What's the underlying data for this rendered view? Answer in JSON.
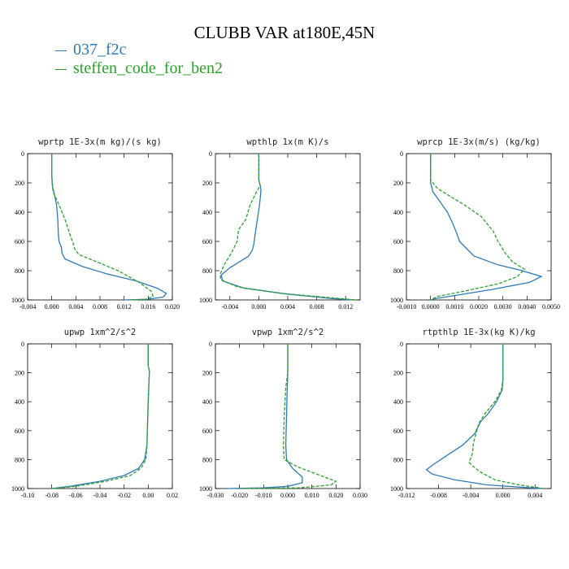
{
  "title": "CLUBB VAR at180E,45N",
  "legend": [
    {
      "name": "037_f2c",
      "color": "#2e7ab6"
    },
    {
      "name": "steffen_code_for_ben2",
      "color": "#2ca02c"
    }
  ],
  "chart_data": [
    {
      "type": "line",
      "title": "wprtp  1E-3x(m kg)/(s kg)",
      "xlim": [
        -0.004,
        0.02
      ],
      "ylim": [
        1000,
        0
      ],
      "xticks": [
        "-0.004",
        "0.000",
        "0.004",
        "0.008",
        "0.012",
        "0.016",
        "0.020"
      ],
      "xtick_values": [
        -0.004,
        0.0,
        0.004,
        0.008,
        0.012,
        0.016,
        0.02
      ],
      "yticks": [
        "0",
        "200",
        "400",
        "600",
        "800",
        "1000"
      ],
      "ytick_values": [
        0,
        200,
        400,
        600,
        800,
        1000
      ],
      "series": [
        {
          "name": "037_f2c",
          "points": [
            [
              0.0,
              0
            ],
            [
              0.0,
              150
            ],
            [
              0.0001,
              220
            ],
            [
              0.0004,
              270
            ],
            [
              0.0008,
              350
            ],
            [
              0.001,
              450
            ],
            [
              0.0011,
              550
            ],
            [
              0.0012,
              600
            ],
            [
              0.0016,
              640
            ],
            [
              0.0017,
              680
            ],
            [
              0.0022,
              720
            ],
            [
              0.005,
              770
            ],
            [
              0.009,
              820
            ],
            [
              0.014,
              870
            ],
            [
              0.0175,
              920
            ],
            [
              0.019,
              955
            ],
            [
              0.0185,
              980
            ],
            [
              0.016,
              995
            ],
            [
              0.012,
              1000
            ]
          ]
        },
        {
          "name": "steffen_code_for_ben2",
          "points": [
            [
              0.0,
              0
            ],
            [
              0.0,
              150
            ],
            [
              0.0002,
              260
            ],
            [
              0.0012,
              350
            ],
            [
              0.0022,
              450
            ],
            [
              0.003,
              550
            ],
            [
              0.0036,
              620
            ],
            [
              0.0038,
              650
            ],
            [
              0.0045,
              690
            ],
            [
              0.0075,
              740
            ],
            [
              0.011,
              800
            ],
            [
              0.0145,
              880
            ],
            [
              0.0165,
              940
            ],
            [
              0.0168,
              975
            ],
            [
              0.0158,
              995
            ],
            [
              0.013,
              1000
            ]
          ]
        }
      ]
    },
    {
      "type": "line",
      "title": "wpthlp  1x(m K)/s",
      "xlim": [
        -0.006,
        0.014
      ],
      "ylim": [
        1000,
        0
      ],
      "xticks": [
        "-0.004",
        "0.000",
        "0.004",
        "0.008",
        "0.012"
      ],
      "xtick_values": [
        -0.004,
        0.0,
        0.004,
        0.008,
        0.012
      ],
      "yticks": [
        "0",
        "200",
        "400",
        "600",
        "800",
        "1000"
      ],
      "ytick_values": [
        0,
        200,
        400,
        600,
        800,
        1000
      ],
      "series": [
        {
          "name": "037_f2c",
          "points": [
            [
              0.0,
              0
            ],
            [
              0.0,
              180
            ],
            [
              0.0002,
              220
            ],
            [
              0.0003,
              250
            ],
            [
              0.0001,
              350
            ],
            [
              -0.0002,
              450
            ],
            [
              -0.0005,
              550
            ],
            [
              -0.0007,
              620
            ],
            [
              -0.0009,
              660
            ],
            [
              -0.0014,
              700
            ],
            [
              -0.004,
              780
            ],
            [
              -0.0052,
              830
            ],
            [
              -0.005,
              870
            ],
            [
              -0.002,
              920
            ],
            [
              0.004,
              960
            ],
            [
              0.01,
              990
            ],
            [
              0.013,
              1000
            ]
          ]
        },
        {
          "name": "steffen_code_for_ben2",
          "points": [
            [
              0.0,
              0
            ],
            [
              0.0,
              180
            ],
            [
              0.0002,
              220
            ],
            [
              -0.0002,
              250
            ],
            [
              -0.0012,
              350
            ],
            [
              -0.0018,
              450
            ],
            [
              -0.0028,
              520
            ],
            [
              -0.003,
              600
            ],
            [
              -0.0038,
              680
            ],
            [
              -0.0048,
              760
            ],
            [
              -0.0053,
              820
            ],
            [
              -0.0053,
              860
            ],
            [
              -0.003,
              910
            ],
            [
              0.003,
              955
            ],
            [
              0.01,
              985
            ],
            [
              0.0135,
              1000
            ]
          ]
        }
      ]
    },
    {
      "type": "line",
      "title": "wprcp  1E-3x(m/s) (kg/kg)",
      "xlim": [
        -0.001,
        0.005
      ],
      "ylim": [
        1000,
        0
      ],
      "xticks": [
        "-0.0010",
        "0.0000",
        "0.0010",
        "0.0020",
        "0.0030",
        "0.0040",
        "0.0050"
      ],
      "xtick_values": [
        -0.001,
        0.0,
        0.001,
        0.002,
        0.003,
        0.004,
        0.005
      ],
      "yticks": [
        "0",
        "200",
        "400",
        "600",
        "800",
        "1000"
      ],
      "ytick_values": [
        0,
        200,
        400,
        600,
        800,
        1000
      ],
      "series": [
        {
          "name": "037_f2c",
          "points": [
            [
              0.0,
              0
            ],
            [
              0.0,
              200
            ],
            [
              0.0001,
              260
            ],
            [
              0.0004,
              330
            ],
            [
              0.0007,
              400
            ],
            [
              0.0009,
              470
            ],
            [
              0.0011,
              550
            ],
            [
              0.0012,
              600
            ],
            [
              0.0015,
              650
            ],
            [
              0.0018,
              700
            ],
            [
              0.0028,
              760
            ],
            [
              0.0038,
              800
            ],
            [
              0.0046,
              840
            ],
            [
              0.0041,
              880
            ],
            [
              0.0025,
              930
            ],
            [
              0.001,
              970
            ],
            [
              0.0002,
              990
            ],
            [
              0.0,
              1000
            ]
          ]
        },
        {
          "name": "steffen_code_for_ben2",
          "points": [
            [
              0.0,
              0
            ],
            [
              0.0,
              180
            ],
            [
              0.0003,
              240
            ],
            [
              0.0009,
              300
            ],
            [
              0.0014,
              350
            ],
            [
              0.0021,
              430
            ],
            [
              0.0026,
              530
            ],
            [
              0.0028,
              600
            ],
            [
              0.0031,
              680
            ],
            [
              0.0034,
              740
            ],
            [
              0.0039,
              790
            ],
            [
              0.0036,
              840
            ],
            [
              0.0028,
              890
            ],
            [
              0.0014,
              940
            ],
            [
              0.0003,
              975
            ],
            [
              0.0,
              1000
            ]
          ]
        }
      ]
    },
    {
      "type": "line",
      "title": "upwp  1xm^2/s^2",
      "xlim": [
        -0.1,
        0.02
      ],
      "ylim": [
        1000,
        0
      ],
      "xticks": [
        "-0.10",
        "-0.08",
        "-0.06",
        "-0.04",
        "-0.02",
        "0.00",
        "0.02"
      ],
      "xtick_values": [
        -0.1,
        -0.08,
        -0.06,
        -0.04,
        -0.02,
        0.0,
        0.02
      ],
      "yticks": [
        "0",
        "200",
        "400",
        "600",
        "800",
        "1000"
      ],
      "ytick_values": [
        0,
        200,
        400,
        600,
        800,
        1000
      ],
      "series": [
        {
          "name": "037_f2c",
          "points": [
            [
              0.0,
              0
            ],
            [
              0.0,
              150
            ],
            [
              0.001,
              190
            ],
            [
              0.0,
              400
            ],
            [
              -0.001,
              700
            ],
            [
              -0.003,
              800
            ],
            [
              -0.008,
              860
            ],
            [
              -0.02,
              910
            ],
            [
              -0.04,
              950
            ],
            [
              -0.065,
              985
            ],
            [
              -0.08,
              1000
            ]
          ]
        },
        {
          "name": "steffen_code_for_ben2",
          "points": [
            [
              0.0,
              0
            ],
            [
              0.0,
              150
            ],
            [
              0.001,
              190
            ],
            [
              0.0,
              400
            ],
            [
              -0.001,
              700
            ],
            [
              -0.002,
              800
            ],
            [
              -0.006,
              860
            ],
            [
              -0.015,
              910
            ],
            [
              -0.035,
              950
            ],
            [
              -0.06,
              985
            ],
            [
              -0.08,
              1000
            ]
          ]
        }
      ]
    },
    {
      "type": "line",
      "title": "vpwp  1xm^2/s^2",
      "xlim": [
        -0.03,
        0.03
      ],
      "ylim": [
        1000,
        0
      ],
      "xticks": [
        "-0.030",
        "-0.020",
        "-0.010",
        "0.000",
        "0.010",
        "0.020",
        "0.030"
      ],
      "xtick_values": [
        -0.03,
        -0.02,
        -0.01,
        0.0,
        0.01,
        0.02,
        0.03
      ],
      "yticks": [
        "0",
        "200",
        "400",
        "600",
        "800",
        "1000"
      ],
      "ytick_values": [
        0,
        200,
        400,
        600,
        800,
        1000
      ],
      "series": [
        {
          "name": "037_f2c",
          "points": [
            [
              0.0,
              0
            ],
            [
              0.0,
              100
            ],
            [
              0.0,
              200
            ],
            [
              -0.0002,
              300
            ],
            [
              -0.0005,
              500
            ],
            [
              -0.0008,
              700
            ],
            [
              -0.0005,
              800
            ],
            [
              0.002,
              860
            ],
            [
              0.006,
              920
            ],
            [
              0.006,
              960
            ],
            [
              0.0,
              985
            ],
            [
              -0.01,
              995
            ],
            [
              -0.025,
              1000
            ]
          ]
        },
        {
          "name": "steffen_code_for_ben2",
          "points": [
            [
              0.0,
              0
            ],
            [
              0.0,
              100
            ],
            [
              0.0,
              200
            ],
            [
              -0.0008,
              300
            ],
            [
              -0.0015,
              500
            ],
            [
              -0.0018,
              700
            ],
            [
              -0.0015,
              800
            ],
            [
              0.004,
              850
            ],
            [
              0.012,
              900
            ],
            [
              0.02,
              950
            ],
            [
              0.018,
              975
            ],
            [
              0.005,
              995
            ],
            [
              -0.02,
              1000
            ]
          ]
        }
      ]
    },
    {
      "type": "line",
      "title": "rtpthlp  1E-3x(kg K)/kg",
      "xlim": [
        -0.012,
        0.006
      ],
      "ylim": [
        1000,
        0
      ],
      "xticks": [
        "-0.012",
        "-0.008",
        "-0.004",
        "0.000",
        "0.004"
      ],
      "xtick_values": [
        -0.012,
        -0.008,
        -0.004,
        0.0,
        0.004
      ],
      "yticks": [
        "0",
        "200",
        "400",
        "600",
        "800",
        "1000"
      ],
      "ytick_values": [
        0,
        200,
        400,
        600,
        800,
        1000
      ],
      "series": [
        {
          "name": "037_f2c",
          "points": [
            [
              0.0,
              0
            ],
            [
              0.0,
              250
            ],
            [
              -0.0001,
              320
            ],
            [
              -0.0008,
              400
            ],
            [
              -0.0018,
              480
            ],
            [
              -0.0028,
              540
            ],
            [
              -0.0035,
              620
            ],
            [
              -0.005,
              700
            ],
            [
              -0.0072,
              780
            ],
            [
              -0.0088,
              840
            ],
            [
              -0.0095,
              870
            ],
            [
              -0.0088,
              900
            ],
            [
              -0.006,
              940
            ],
            [
              -0.002,
              975
            ],
            [
              0.002,
              990
            ],
            [
              0.005,
              1000
            ]
          ]
        },
        {
          "name": "steffen_code_for_ben2",
          "points": [
            [
              0.0,
              0
            ],
            [
              0.0,
              250
            ],
            [
              -0.0002,
              320
            ],
            [
              -0.001,
              400
            ],
            [
              -0.0022,
              480
            ],
            [
              -0.003,
              550
            ],
            [
              -0.0035,
              650
            ],
            [
              -0.0037,
              700
            ],
            [
              -0.0038,
              760
            ],
            [
              -0.0042,
              820
            ],
            [
              -0.003,
              880
            ],
            [
              -0.001,
              940
            ],
            [
              0.002,
              975
            ],
            [
              0.0045,
              995
            ],
            [
              0.005,
              1000
            ]
          ]
        }
      ]
    }
  ]
}
